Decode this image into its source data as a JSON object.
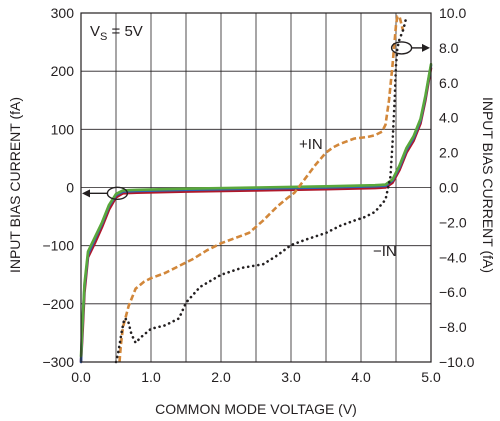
{
  "chart_data": {
    "type": "line",
    "annotation_vs": {
      "prefix": "V",
      "sub": "S",
      "suffix": " = 5V"
    },
    "xlabel": "COMMON MODE VOLTAGE (V)",
    "ylabel_left": "INPUT BIAS CURRENT (fA)",
    "ylabel_right": "INPUT BIAS CURRENT (fA)",
    "xlim": [
      0,
      5
    ],
    "ylim_left": [
      -300,
      300
    ],
    "ylim_right": [
      -10,
      10
    ],
    "x_ticks": [
      "0.0",
      "1.0",
      "2.0",
      "3.0",
      "4.0",
      "5.0"
    ],
    "y_left_ticks": [
      "−300",
      "−200",
      "−100",
      "0",
      "100",
      "200",
      "300"
    ],
    "y_right_ticks": [
      "−10.0",
      "−8.0",
      "−6.0",
      "−4.0",
      "−2.0",
      "0.0",
      "2.0",
      "4.0",
      "6.0",
      "8.0",
      "10.0"
    ],
    "grid": true,
    "colors": {
      "red": "#b0182a",
      "blue": "#2f63b0",
      "green": "#5aa83c",
      "orange": "#d2873a",
      "black": "#231f20"
    },
    "left_axis_series": [
      {
        "color": "red",
        "points": [
          [
            0.0,
            -300
          ],
          [
            0.02,
            -255
          ],
          [
            0.05,
            -180
          ],
          [
            0.1,
            -120
          ],
          [
            0.2,
            -95
          ],
          [
            0.3,
            -68
          ],
          [
            0.4,
            -38
          ],
          [
            0.5,
            -17
          ],
          [
            0.6,
            -10
          ],
          [
            0.8,
            -9
          ],
          [
            1.5,
            -7
          ],
          [
            2.5,
            -5
          ],
          [
            3.5,
            -3
          ],
          [
            4.2,
            -1
          ],
          [
            4.35,
            0
          ],
          [
            4.45,
            8
          ],
          [
            4.55,
            30
          ],
          [
            4.65,
            60
          ],
          [
            4.75,
            80
          ],
          [
            4.85,
            110
          ],
          [
            4.92,
            150
          ],
          [
            4.97,
            185
          ],
          [
            5.0,
            205
          ]
        ]
      },
      {
        "color": "blue",
        "points": [
          [
            0.0,
            -300
          ],
          [
            0.02,
            -240
          ],
          [
            0.05,
            -170
          ],
          [
            0.1,
            -115
          ],
          [
            0.2,
            -88
          ],
          [
            0.3,
            -62
          ],
          [
            0.4,
            -32
          ],
          [
            0.5,
            -13
          ],
          [
            0.6,
            -7
          ],
          [
            0.8,
            -6
          ],
          [
            1.5,
            -4
          ],
          [
            2.5,
            -2
          ],
          [
            3.5,
            0
          ],
          [
            4.2,
            2
          ],
          [
            4.35,
            3
          ],
          [
            4.45,
            12
          ],
          [
            4.55,
            35
          ],
          [
            4.65,
            65
          ],
          [
            4.75,
            85
          ],
          [
            4.85,
            115
          ],
          [
            4.92,
            155
          ],
          [
            4.97,
            190
          ],
          [
            5.0,
            210
          ]
        ]
      },
      {
        "color": "green",
        "points": [
          [
            0.0,
            -290
          ],
          [
            0.02,
            -235
          ],
          [
            0.05,
            -165
          ],
          [
            0.1,
            -110
          ],
          [
            0.2,
            -85
          ],
          [
            0.3,
            -60
          ],
          [
            0.4,
            -30
          ],
          [
            0.5,
            -11
          ],
          [
            0.6,
            -5
          ],
          [
            0.8,
            -4
          ],
          [
            1.5,
            -2
          ],
          [
            2.5,
            0
          ],
          [
            3.5,
            2
          ],
          [
            4.2,
            4
          ],
          [
            4.35,
            5
          ],
          [
            4.45,
            14
          ],
          [
            4.55,
            38
          ],
          [
            4.65,
            68
          ],
          [
            4.75,
            88
          ],
          [
            4.85,
            118
          ],
          [
            4.92,
            158
          ],
          [
            4.97,
            192
          ],
          [
            5.0,
            212
          ]
        ]
      }
    ],
    "right_axis_series": [
      {
        "name": "+IN",
        "color": "orange",
        "style": "dashed",
        "points": [
          [
            0.55,
            -10
          ],
          [
            0.57,
            -9
          ],
          [
            0.6,
            -8
          ],
          [
            0.68,
            -6.8
          ],
          [
            0.78,
            -5.8
          ],
          [
            0.9,
            -5.4
          ],
          [
            1.0,
            -5.2
          ],
          [
            1.2,
            -4.9
          ],
          [
            1.4,
            -4.5
          ],
          [
            1.6,
            -4.1
          ],
          [
            1.8,
            -3.6
          ],
          [
            2.0,
            -3.2
          ],
          [
            2.2,
            -2.9
          ],
          [
            2.4,
            -2.6
          ],
          [
            2.6,
            -1.9
          ],
          [
            2.8,
            -1.1
          ],
          [
            2.95,
            -0.6
          ],
          [
            3.05,
            -0.3
          ],
          [
            3.2,
            0.5
          ],
          [
            3.35,
            1.3
          ],
          [
            3.5,
            2.0
          ],
          [
            3.6,
            2.3
          ],
          [
            3.7,
            2.5
          ],
          [
            3.9,
            2.8
          ],
          [
            4.1,
            2.9
          ],
          [
            4.2,
            3.0
          ],
          [
            4.3,
            3.2
          ],
          [
            4.35,
            3.6
          ],
          [
            4.4,
            5.0
          ],
          [
            4.45,
            7.0
          ],
          [
            4.5,
            9.3
          ],
          [
            4.52,
            9.8
          ],
          [
            4.55,
            9.8
          ],
          [
            4.6,
            9.0
          ]
        ]
      },
      {
        "name": "−IN",
        "color": "black",
        "style": "dotted",
        "points": [
          [
            0.5,
            -10
          ],
          [
            0.53,
            -9.5
          ],
          [
            0.58,
            -8.3
          ],
          [
            0.62,
            -7.5
          ],
          [
            0.67,
            -7.6
          ],
          [
            0.72,
            -8.4
          ],
          [
            0.78,
            -8.9
          ],
          [
            0.85,
            -8.6
          ],
          [
            1.0,
            -8.1
          ],
          [
            1.2,
            -7.9
          ],
          [
            1.4,
            -7.5
          ],
          [
            1.5,
            -6.6
          ],
          [
            1.7,
            -5.7
          ],
          [
            2.0,
            -5.0
          ],
          [
            2.3,
            -4.6
          ],
          [
            2.6,
            -4.4
          ],
          [
            2.8,
            -3.9
          ],
          [
            3.0,
            -3.3
          ],
          [
            3.2,
            -3.0
          ],
          [
            3.5,
            -2.6
          ],
          [
            3.7,
            -2.2
          ],
          [
            3.9,
            -1.9
          ],
          [
            4.05,
            -1.7
          ],
          [
            4.2,
            -1.4
          ],
          [
            4.35,
            -0.7
          ],
          [
            4.42,
            0.6
          ],
          [
            4.45,
            2.5
          ],
          [
            4.48,
            5.0
          ],
          [
            4.5,
            7.0
          ],
          [
            4.52,
            8.0
          ],
          [
            4.55,
            8.5
          ],
          [
            4.6,
            9.0
          ],
          [
            4.62,
            9.3
          ],
          [
            4.65,
            9.8
          ]
        ]
      }
    ],
    "series_labels": {
      "plus_in": "+IN",
      "minus_in": "−IN"
    }
  }
}
